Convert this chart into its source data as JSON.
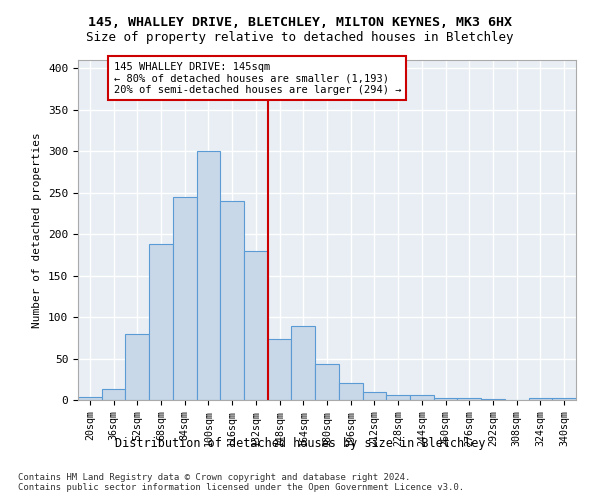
{
  "title1": "145, WHALLEY DRIVE, BLETCHLEY, MILTON KEYNES, MK3 6HX",
  "title2": "Size of property relative to detached houses in Bletchley",
  "xlabel": "Distribution of detached houses by size in Bletchley",
  "ylabel": "Number of detached properties",
  "bar_labels": [
    "20sqm",
    "36sqm",
    "52sqm",
    "68sqm",
    "84sqm",
    "100sqm",
    "116sqm",
    "132sqm",
    "148sqm",
    "164sqm",
    "180sqm",
    "196sqm",
    "212sqm",
    "228sqm",
    "244sqm",
    "260sqm",
    "276sqm",
    "292sqm",
    "308sqm",
    "324sqm",
    "340sqm"
  ],
  "bar_values": [
    4,
    13,
    80,
    188,
    245,
    300,
    240,
    180,
    73,
    89,
    44,
    20,
    10,
    6,
    6,
    3,
    2,
    1,
    0,
    2,
    2
  ],
  "bar_color": "#c8d8e8",
  "bar_edge_color": "#5b9bd5",
  "bg_color": "#e8eef4",
  "grid_color": "#ffffff",
  "vline_x": 7.5,
  "vline_color": "#cc0000",
  "annotation_text": "145 WHALLEY DRIVE: 145sqm\n← 80% of detached houses are smaller (1,193)\n20% of semi-detached houses are larger (294) →",
  "annotation_box_color": "#ffffff",
  "annotation_box_edge": "#cc0000",
  "footnote": "Contains HM Land Registry data © Crown copyright and database right 2024.\nContains public sector information licensed under the Open Government Licence v3.0.",
  "ylim": [
    0,
    410
  ],
  "yticks": [
    0,
    50,
    100,
    150,
    200,
    250,
    300,
    350,
    400
  ]
}
